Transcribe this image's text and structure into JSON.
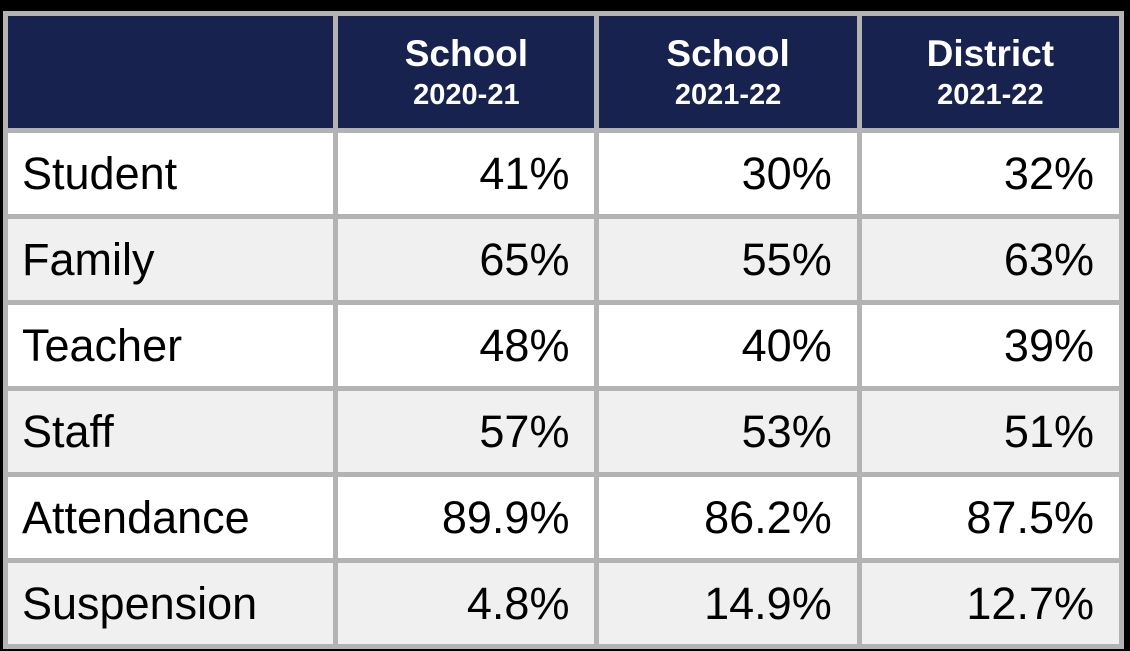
{
  "table": {
    "corner_label": "",
    "columns": [
      {
        "line1": "School",
        "line2": "2020-21"
      },
      {
        "line1": "School",
        "line2": "2021-22"
      },
      {
        "line1": "District",
        "line2": "2021-22"
      }
    ],
    "rows": [
      {
        "label": "Student",
        "values": [
          "41%",
          "30%",
          "32%"
        ]
      },
      {
        "label": "Family",
        "values": [
          "65%",
          "55%",
          "63%"
        ]
      },
      {
        "label": "Teacher",
        "values": [
          "48%",
          "40%",
          "39%"
        ]
      },
      {
        "label": "Staff",
        "values": [
          "57%",
          "53%",
          "51%"
        ]
      },
      {
        "label": "Attendance",
        "values": [
          "89.9%",
          "86.2%",
          "87.5%"
        ]
      },
      {
        "label": "Suspension",
        "values": [
          "4.8%",
          "14.9%",
          "12.7%"
        ]
      }
    ]
  },
  "colors": {
    "header_background": "#18224e",
    "header_text": "#ffffff",
    "cell_border": "#b3b3b3",
    "row_alt_background": "#f0f0f0",
    "row_background": "#ffffff",
    "frame_background": "#000000",
    "body_text": "#000000"
  },
  "chart_data": {
    "type": "table",
    "title": "",
    "columns": [
      "",
      "School 2020-21",
      "School 2021-22",
      "District 2021-22"
    ],
    "rows": [
      [
        "Student",
        "41%",
        "30%",
        "32%"
      ],
      [
        "Family",
        "65%",
        "55%",
        "63%"
      ],
      [
        "Teacher",
        "48%",
        "40%",
        "39%"
      ],
      [
        "Staff",
        "57%",
        "53%",
        "51%"
      ],
      [
        "Attendance",
        "89.9%",
        "86.2%",
        "87.5%"
      ],
      [
        "Suspension",
        "4.8%",
        "14.9%",
        "12.7%"
      ]
    ]
  }
}
